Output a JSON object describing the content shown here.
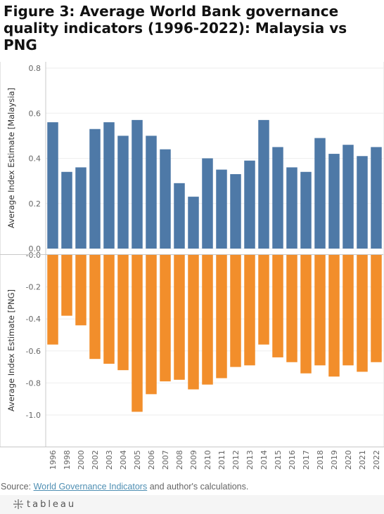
{
  "title": "Figure 3: Average World Bank governance quality indicators (1996-2022): Malaysia vs PNG",
  "source": {
    "prefix": "Source: ",
    "link_text": "World Governance Indicators",
    "suffix": " and author's calculations."
  },
  "footer": {
    "brand": "tableau"
  },
  "colors": {
    "malaysia": "#4e79a7",
    "png": "#f28e2b",
    "axis": "#c8c8c8",
    "grid": "#eeeeee"
  },
  "chart_data": {
    "type": "bar",
    "categories": [
      "1996",
      "1998",
      "2000",
      "2002",
      "2003",
      "2004",
      "2005",
      "2006",
      "2007",
      "2008",
      "2009",
      "2010",
      "2011",
      "2012",
      "2013",
      "2014",
      "2015",
      "2016",
      "2017",
      "2018",
      "2019",
      "2020",
      "2021",
      "2022"
    ],
    "panels": [
      {
        "ylabel": "Average Index Estimate [Malaysia]",
        "ylim": [
          0,
          0.8
        ],
        "yticks": [
          0.0,
          0.2,
          0.4,
          0.6,
          0.8
        ],
        "ytick_labels": [
          "0.0",
          "0.2",
          "0.4",
          "0.6",
          "0.8"
        ],
        "values": [
          0.56,
          0.34,
          0.36,
          0.53,
          0.56,
          0.5,
          0.57,
          0.5,
          0.44,
          0.29,
          0.23,
          0.4,
          0.35,
          0.33,
          0.39,
          0.57,
          0.45,
          0.36,
          0.34,
          0.49,
          0.42,
          0.46,
          0.41,
          0.45
        ]
      },
      {
        "ylabel": "Average Index Estimate [PNG]",
        "ylim": [
          -1.2,
          0
        ],
        "yticks": [
          0.0,
          -0.2,
          -0.4,
          -0.6,
          -0.8,
          -1.0
        ],
        "ytick_labels": [
          "-0.0",
          "-0.2",
          "-0.4",
          "-0.6",
          "-0.8",
          "-1.0"
        ],
        "values": [
          -0.56,
          -0.38,
          -0.44,
          -0.65,
          -0.68,
          -0.72,
          -0.98,
          -0.87,
          -0.79,
          -0.78,
          -0.84,
          -0.81,
          -0.77,
          -0.7,
          -0.69,
          -0.56,
          -0.64,
          -0.67,
          -0.74,
          -0.69,
          -0.76,
          -0.69,
          -0.73,
          -0.67
        ]
      }
    ],
    "grid": true
  }
}
